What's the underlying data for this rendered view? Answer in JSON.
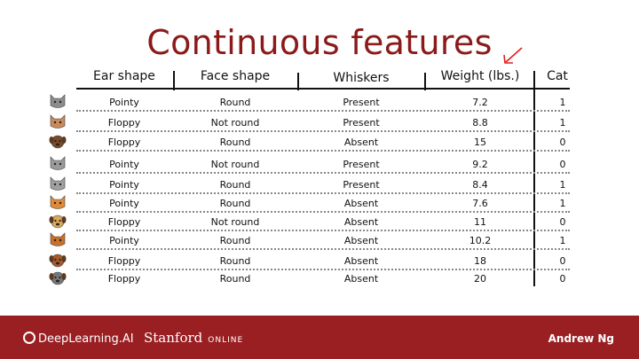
{
  "slide": {
    "title": "Continuous features"
  },
  "table": {
    "headers": [
      "Ear shape",
      "Face shape",
      "Whiskers",
      "Weight (lbs.)",
      "Cat"
    ],
    "rows": [
      {
        "animal": "cat-gray-icon",
        "ear": "Pointy",
        "face": "Round",
        "whiskers": "Present",
        "weight": "7.2",
        "cat": "1"
      },
      {
        "animal": "cat-tabby-icon",
        "ear": "Floppy",
        "face": "Not round",
        "whiskers": "Present",
        "weight": "8.8",
        "cat": "1"
      },
      {
        "animal": "dog-brown-icon",
        "ear": "Floppy",
        "face": "Round",
        "whiskers": "Absent",
        "weight": "15",
        "cat": "0"
      },
      {
        "animal": "wolf-dog-icon",
        "ear": "Pointy",
        "face": "Not round",
        "whiskers": "Present",
        "weight": "9.2",
        "cat": "0"
      },
      {
        "animal": "cat-gray2-icon",
        "ear": "Pointy",
        "face": "Round",
        "whiskers": "Present",
        "weight": "8.4",
        "cat": "1"
      },
      {
        "animal": "cat-orange-icon",
        "ear": "Pointy",
        "face": "Round",
        "whiskers": "Absent",
        "weight": "7.6",
        "cat": "1"
      },
      {
        "animal": "dog-tan-icon",
        "ear": "Floppy",
        "face": "Not round",
        "whiskers": "Absent",
        "weight": "11",
        "cat": "0"
      },
      {
        "animal": "cat-ginger-icon",
        "ear": "Pointy",
        "face": "Round",
        "whiskers": "Absent",
        "weight": "10.2",
        "cat": "1"
      },
      {
        "animal": "dog-red-icon",
        "ear": "Floppy",
        "face": "Round",
        "whiskers": "Absent",
        "weight": "18",
        "cat": "0"
      },
      {
        "animal": "dog-gray-icon",
        "ear": "Floppy",
        "face": "Round",
        "whiskers": "Absent",
        "weight": "20",
        "cat": "0"
      }
    ]
  },
  "footer": {
    "brand": "DeepLearning.AI",
    "partner": "Stanford",
    "partner_suffix": "ONLINE",
    "author": "Andrew Ng"
  },
  "colors": {
    "title": "#8b1a1a",
    "footer_bg": "#9a1f23",
    "arrow": "#e02020"
  }
}
